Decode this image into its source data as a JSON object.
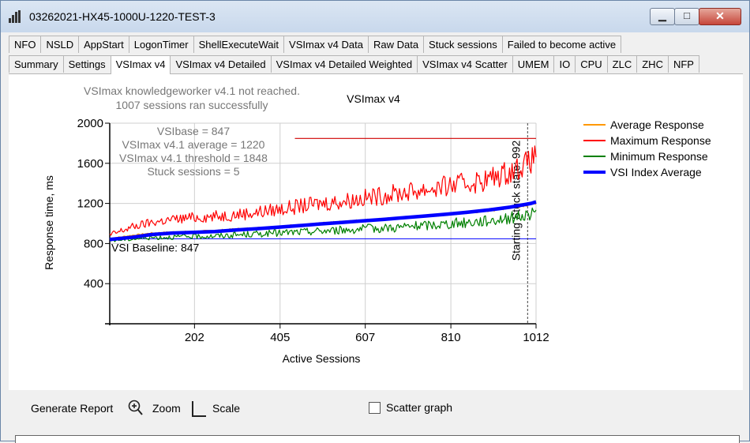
{
  "window": {
    "title": "03262021-HX45-1000U-1220-TEST-3",
    "min_glyph": "▁",
    "max_glyph": "□",
    "close_glyph": "✕"
  },
  "tabs_row1": [
    "NFO",
    "NSLD",
    "AppStart",
    "LogonTimer",
    "ShellExecuteWait",
    "VSImax v4 Data",
    "Raw Data",
    "Stuck sessions",
    "Failed to become active"
  ],
  "tabs_row2": [
    "Summary",
    "Settings",
    "VSImax v4",
    "VSImax v4 Detailed",
    "VSImax v4 Detailed Weighted",
    "VSImax v4 Scatter",
    "UMEM",
    "IO",
    "CPU",
    "ZLC",
    "ZHC",
    "NFP"
  ],
  "active_tab": "VSImax v4",
  "chart_data": {
    "type": "line",
    "title": "VSImax v4",
    "xlabel": "Active Sessions",
    "ylabel": "Response time, ms",
    "xlim": [
      1,
      1012
    ],
    "ylim": [
      0,
      2000
    ],
    "xticks": [
      202,
      405,
      607,
      810,
      1012
    ],
    "yticks": [
      400,
      800,
      1200,
      1600,
      2000
    ],
    "grid": true,
    "legend_position": "right",
    "annotations": {
      "not_reached": "VSImax knowledgeworker v4.1 not reached.",
      "sessions_ok": "1007 sessions ran successfully",
      "vsibase": "VSIbase = 847",
      "vsimax_avg": "VSImax v4.1 average = 1220",
      "vsimax_threshold": "VSImax v4.1 threshold = 1848",
      "stuck": "Stuck sessions = 5",
      "baseline_label": "VSI Baseline: 847",
      "stuck_marker_label": "Starting Stuck state: 992"
    },
    "baseline": 847,
    "threshold": 1848,
    "threshold_start_x": 440,
    "stuck_x": 992,
    "series": [
      {
        "name": "Average Response",
        "color": "#ff9900",
        "x": [
          1,
          50,
          100,
          150,
          200,
          250,
          300,
          350,
          400,
          450,
          500,
          550,
          600,
          650,
          700,
          750,
          800,
          850,
          900,
          950,
          1000,
          1012
        ],
        "values": [
          850,
          880,
          905,
          915,
          920,
          930,
          945,
          955,
          970,
          985,
          1000,
          1015,
          1030,
          1045,
          1060,
          1075,
          1090,
          1110,
          1130,
          1160,
          1195,
          1210
        ]
      },
      {
        "name": "Maximum Response",
        "color": "#ff0000",
        "x": [
          1,
          50,
          100,
          150,
          200,
          250,
          300,
          350,
          400,
          450,
          500,
          550,
          600,
          650,
          700,
          750,
          800,
          850,
          900,
          950,
          1000,
          1012
        ],
        "values": [
          880,
          960,
          1010,
          1040,
          1060,
          1070,
          1090,
          1110,
          1140,
          1170,
          1200,
          1220,
          1250,
          1280,
          1310,
          1340,
          1370,
          1400,
          1440,
          1520,
          1620,
          1700
        ]
      },
      {
        "name": "Minimum Response",
        "color": "#008000",
        "x": [
          1,
          50,
          100,
          150,
          200,
          250,
          300,
          350,
          400,
          450,
          500,
          550,
          600,
          650,
          700,
          750,
          800,
          850,
          900,
          950,
          1000,
          1012
        ],
        "values": [
          830,
          845,
          860,
          865,
          870,
          875,
          885,
          895,
          905,
          915,
          925,
          935,
          945,
          955,
          965,
          980,
          995,
          1010,
          1030,
          1055,
          1090,
          1110
        ]
      },
      {
        "name": "VSI Index Average",
        "color": "#0000ff",
        "x": [
          1,
          50,
          100,
          150,
          200,
          250,
          300,
          350,
          400,
          450,
          500,
          550,
          600,
          650,
          700,
          750,
          800,
          850,
          900,
          950,
          1000,
          1012
        ],
        "values": [
          840,
          860,
          890,
          905,
          912,
          920,
          935,
          948,
          962,
          978,
          995,
          1010,
          1025,
          1040,
          1058,
          1075,
          1092,
          1112,
          1135,
          1162,
          1200,
          1215
        ]
      }
    ]
  },
  "bottom": {
    "generate_report": "Generate Report",
    "zoom": "Zoom",
    "scale": "Scale",
    "scatter": "Scatter graph"
  }
}
